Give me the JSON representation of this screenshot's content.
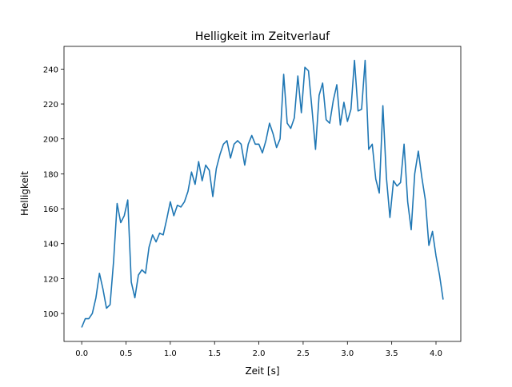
{
  "chart_data": {
    "type": "line",
    "title": "Helligkeit im Zeitverlauf",
    "xlabel": "Zeit [s]",
    "ylabel": "Helligkeit",
    "xlim": [
      -0.2,
      4.28
    ],
    "ylim": [
      84,
      253
    ],
    "xticks": [
      "0.0",
      "0.5",
      "1.0",
      "1.5",
      "2.0",
      "2.5",
      "3.0",
      "3.5",
      "4.0"
    ],
    "yticks": [
      "100",
      "120",
      "140",
      "160",
      "180",
      "200",
      "220",
      "240"
    ],
    "grid": false,
    "x_start": 0.0,
    "x_step": 0.04,
    "series": [
      {
        "name": "Helligkeit",
        "color": "#1f77b4",
        "values": [
          92,
          97,
          97,
          100,
          109,
          123,
          114,
          103,
          105,
          130,
          163,
          152,
          156,
          165,
          118,
          109,
          122,
          125,
          123,
          138,
          145,
          141,
          146,
          145,
          154,
          164,
          156,
          162,
          161,
          164,
          170,
          181,
          174,
          187,
          176,
          185,
          182,
          167,
          183,
          191,
          197,
          199,
          189,
          197,
          199,
          197,
          185,
          197,
          202,
          197,
          197,
          192,
          199,
          209,
          203,
          195,
          200,
          237,
          209,
          206,
          212,
          236,
          215,
          241,
          239,
          217,
          194,
          225,
          232,
          211,
          209,
          222,
          231,
          208,
          221,
          210,
          217,
          245,
          216,
          217,
          245,
          194,
          197,
          177,
          169,
          219,
          178,
          155,
          176,
          173,
          175,
          197,
          164,
          148,
          180,
          193,
          178,
          165,
          139,
          147,
          133,
          122,
          108
        ]
      }
    ]
  }
}
